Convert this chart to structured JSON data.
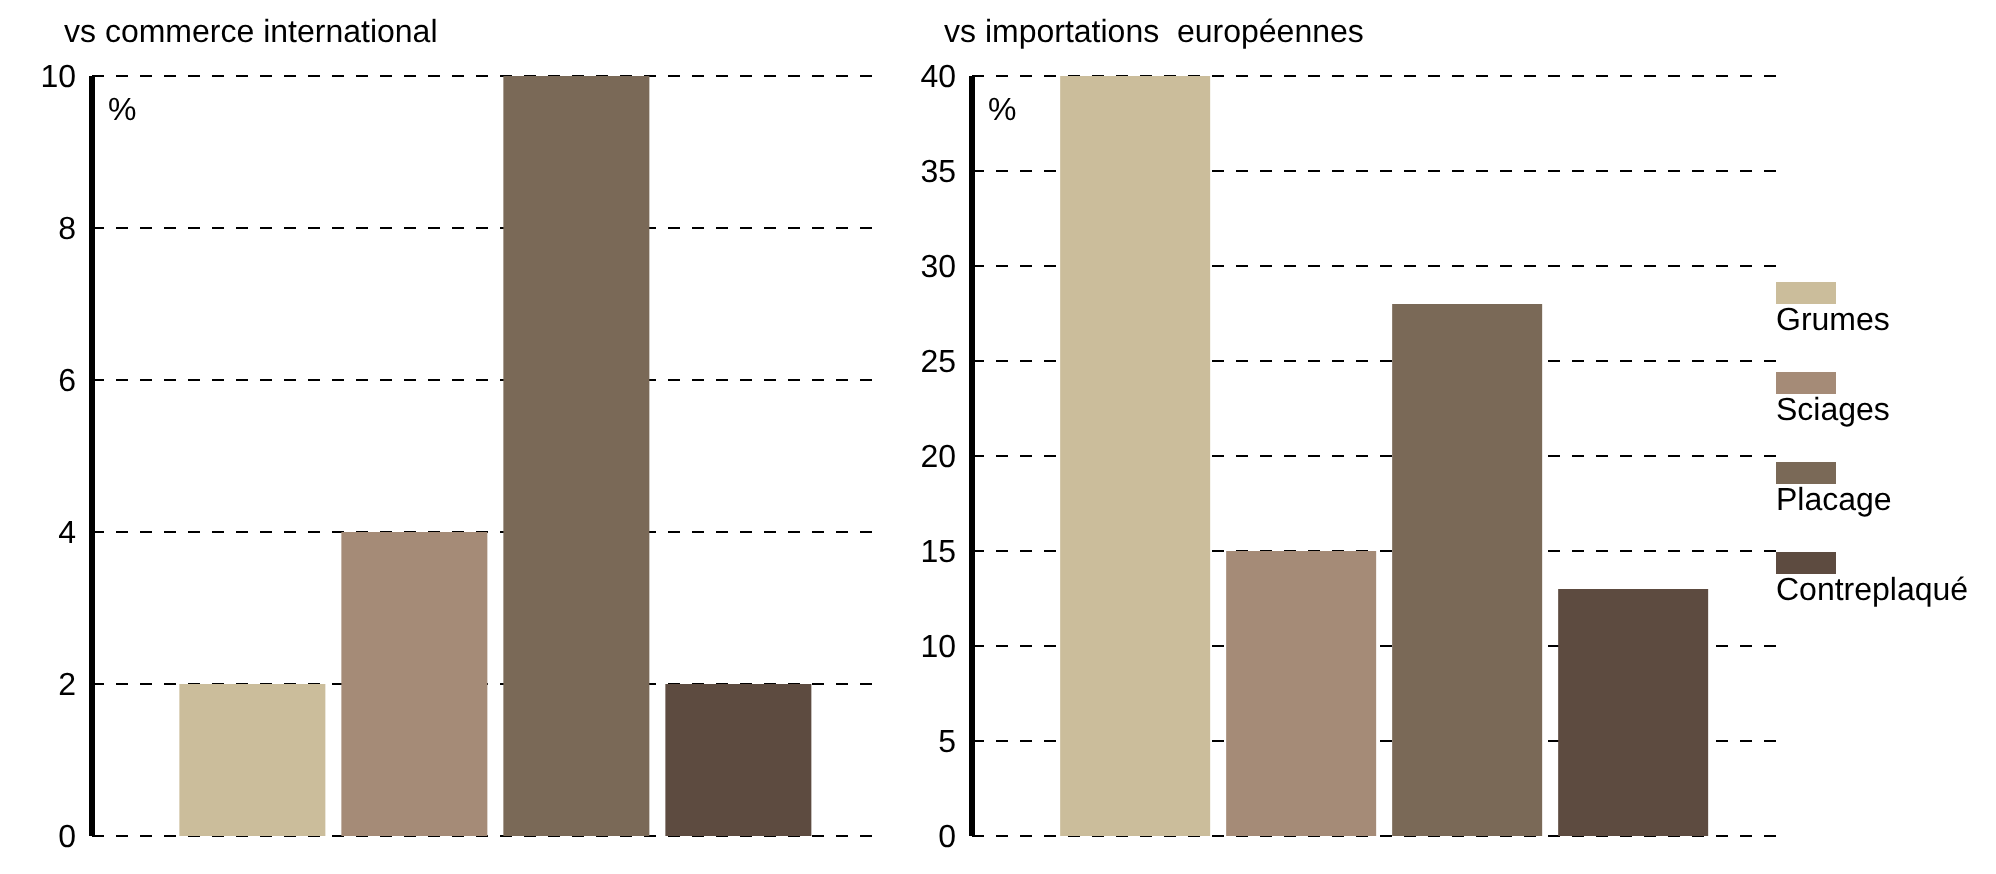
{
  "chart_data": [
    {
      "type": "bar",
      "title": "vs commerce international",
      "ylabel": "%",
      "categories": [
        null
      ],
      "series": [
        {
          "color": "#cbbd9b",
          "values": [
            2
          ]
        },
        {
          "color": "#a58b77",
          "values": [
            4
          ]
        },
        {
          "color": "#7a6957",
          "values": [
            10
          ]
        },
        {
          "color": "#5d4b40",
          "values": [
            2
          ]
        }
      ],
      "ylim": [
        0,
        10
      ],
      "yticks": [
        0,
        2,
        4,
        6,
        8,
        10
      ],
      "grid": "y",
      "legend": false
    },
    {
      "type": "bar",
      "title": "vs importations  européennes",
      "ylabel": "%",
      "categories": [
        null
      ],
      "series": [
        {
          "name": "Grumes",
          "color": "#cbbd9b",
          "values": [
            40
          ]
        },
        {
          "name": "Sciages",
          "color": "#a58b77",
          "values": [
            15
          ]
        },
        {
          "name": "Placage",
          "color": "#7a6957",
          "values": [
            28
          ]
        },
        {
          "name": "Contreplaqué",
          "color": "#5d4b40",
          "values": [
            13
          ]
        }
      ],
      "ylim": [
        0,
        40
      ],
      "yticks": [
        0,
        5,
        10,
        15,
        20,
        25,
        30,
        35,
        40
      ],
      "grid": "y",
      "legend": "right"
    }
  ]
}
